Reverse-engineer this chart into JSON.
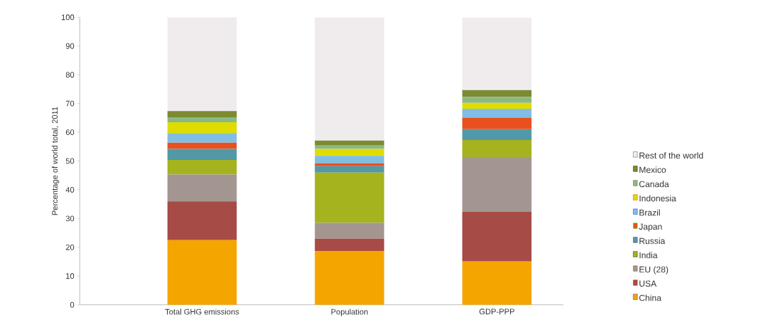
{
  "chart_data": {
    "type": "bar",
    "stacked": true,
    "ylabel": "Percentage of world total, 2011",
    "categories": [
      "Total GHG emissions",
      "Population",
      "GDP-PPP"
    ],
    "ylim": [
      0,
      100
    ],
    "yticks": [
      0,
      10,
      20,
      30,
      40,
      50,
      60,
      70,
      80,
      90,
      100
    ],
    "grid": false,
    "legend": "right",
    "series": [
      {
        "name": "China",
        "color": "#f5a500",
        "values": [
          22.5,
          18.7,
          15.1
        ]
      },
      {
        "name": "USA",
        "color": "#a64b45",
        "values": [
          13.5,
          4.3,
          17.3
        ]
      },
      {
        "name": "EU (28)",
        "color": "#a39590",
        "values": [
          9.3,
          5.5,
          18.7
        ]
      },
      {
        "name": "India",
        "color": "#a5b31f",
        "values": [
          5.1,
          17.5,
          6.2
        ]
      },
      {
        "name": "Russia",
        "color": "#5299a7",
        "values": [
          3.8,
          2.2,
          3.8
        ]
      },
      {
        "name": "Japan",
        "color": "#e9501e",
        "values": [
          2.2,
          1.0,
          4.0
        ]
      },
      {
        "name": "Brazil",
        "color": "#80bee3",
        "values": [
          3.3,
          2.6,
          3.1
        ]
      },
      {
        "name": "Indonesia",
        "color": "#e0dc00",
        "values": [
          3.8,
          2.4,
          2.0
        ]
      },
      {
        "name": "Canada",
        "color": "#8bb985",
        "values": [
          1.7,
          1.2,
          2.1
        ]
      },
      {
        "name": "Mexico",
        "color": "#7c8a30",
        "values": [
          2.2,
          1.7,
          2.4
        ]
      },
      {
        "name": "Rest of the world",
        "color": "#f0ecee",
        "values": [
          32.6,
          42.9,
          25.2
        ]
      }
    ]
  }
}
